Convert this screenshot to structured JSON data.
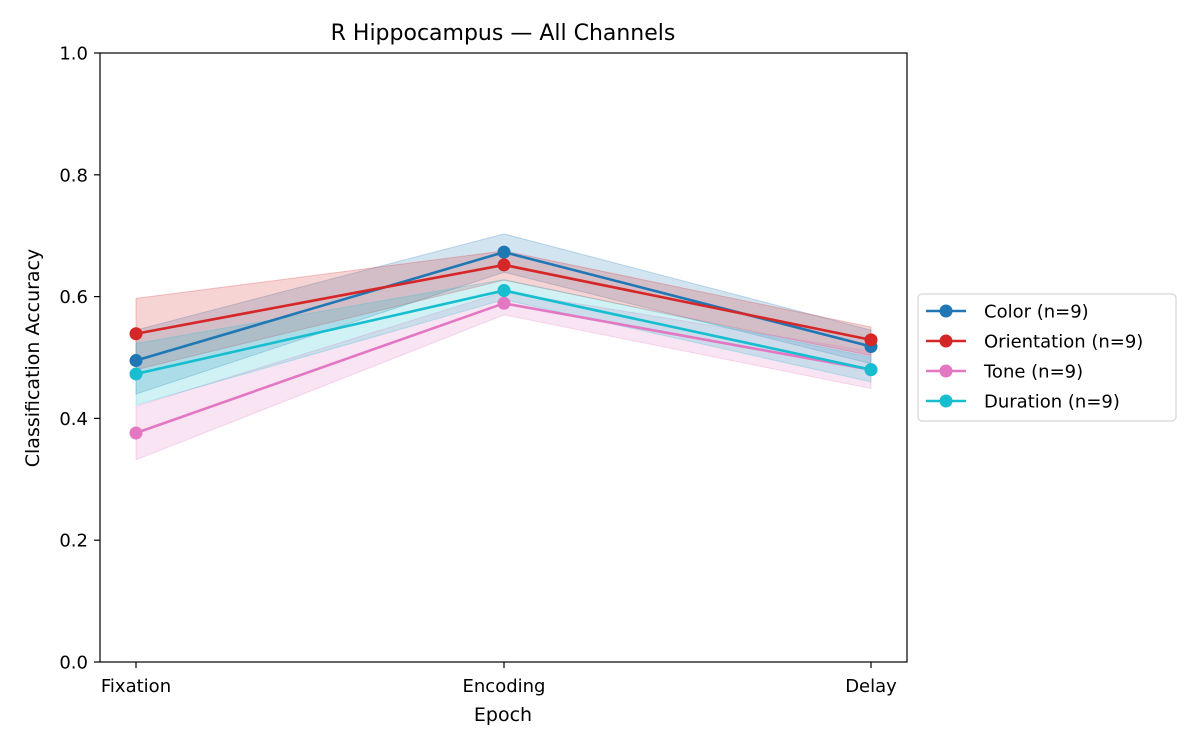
{
  "chart_data": {
    "type": "line",
    "title": "R Hippocampus — All Channels",
    "xlabel": "Epoch",
    "ylabel": "Classification Accuracy",
    "categories": [
      "Fixation",
      "Encoding",
      "Delay"
    ],
    "ylim": [
      0.0,
      1.0
    ],
    "yticks": [
      0.0,
      0.2,
      0.4,
      0.6,
      0.8,
      1.0
    ],
    "ytick_labels": [
      "0.0",
      "0.2",
      "0.4",
      "0.6",
      "0.8",
      "1.0"
    ],
    "grid": false,
    "legend_position": "right, outside",
    "series": [
      {
        "name": "Color (n=9)",
        "color": "#1f77b4",
        "values": [
          0.495,
          0.673,
          0.518
        ],
        "lower": [
          0.44,
          0.64,
          0.49
        ],
        "upper": [
          0.545,
          0.703,
          0.545
        ]
      },
      {
        "name": "Orientation (n=9)",
        "color": "#d62728",
        "values": [
          0.539,
          0.652,
          0.529
        ],
        "lower": [
          0.48,
          0.627,
          0.503
        ],
        "upper": [
          0.597,
          0.675,
          0.55
        ]
      },
      {
        "name": "Tone (n=9)",
        "color": "#e377c2",
        "values": [
          0.376,
          0.589,
          0.48
        ],
        "lower": [
          0.332,
          0.57,
          0.449
        ],
        "upper": [
          0.42,
          0.608,
          0.51
        ]
      },
      {
        "name": "Duration (n=9)",
        "color": "#17becf",
        "values": [
          0.473,
          0.61,
          0.48
        ],
        "lower": [
          0.422,
          0.595,
          0.46
        ],
        "upper": [
          0.523,
          0.628,
          0.5
        ]
      }
    ]
  }
}
